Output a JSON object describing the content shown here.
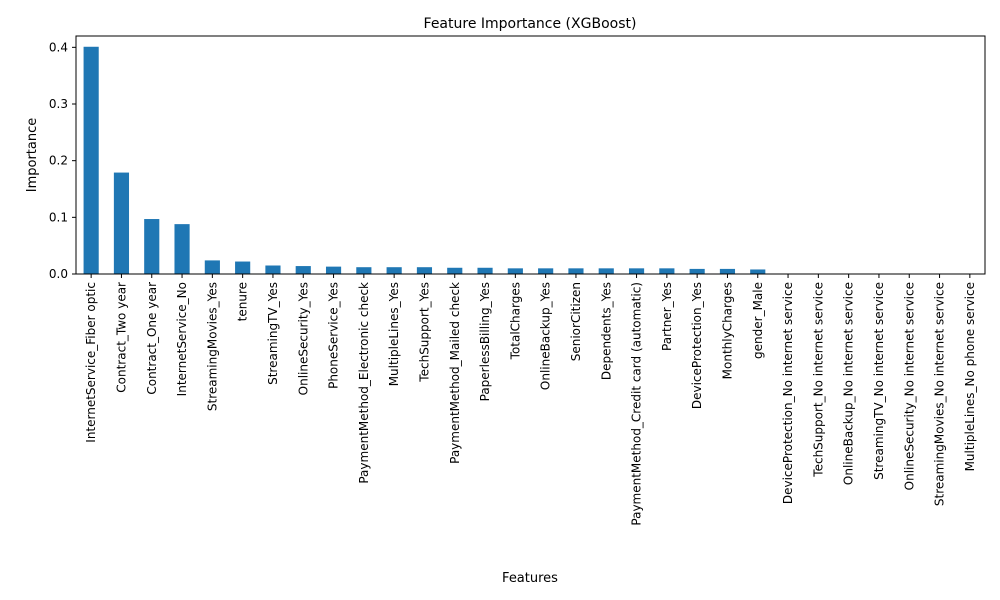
{
  "chart_data": {
    "type": "bar",
    "title": "Feature Importance (XGBoost)",
    "xlabel": "Features",
    "ylabel": "Importance",
    "ylim": [
      0,
      0.42
    ],
    "yticks": [
      0.0,
      0.1,
      0.2,
      0.3,
      0.4
    ],
    "ytick_labels": [
      "0.0",
      "0.1",
      "0.2",
      "0.3",
      "0.4"
    ],
    "grid": false,
    "bar_color": "#1f77b4",
    "categories": [
      "InternetService_Fiber optic",
      "Contract_Two year",
      "Contract_One year",
      "InternetService_No",
      "StreamingMovies_Yes",
      "tenure",
      "StreamingTV_Yes",
      "OnlineSecurity_Yes",
      "PhoneService_Yes",
      "PaymentMethod_Electronic check",
      "MultipleLines_Yes",
      "TechSupport_Yes",
      "PaymentMethod_Mailed check",
      "PaperlessBilling_Yes",
      "TotalCharges",
      "OnlineBackup_Yes",
      "SeniorCitizen",
      "Dependents_Yes",
      "PaymentMethod_Credit card (automatic)",
      "Partner_Yes",
      "DeviceProtection_Yes",
      "MonthlyCharges",
      "gender_Male",
      "DeviceProtection_No internet service",
      "TechSupport_No internet service",
      "OnlineBackup_No internet service",
      "StreamingTV_No internet service",
      "OnlineSecurity_No internet service",
      "StreamingMovies_No internet service",
      "MultipleLines_No phone service"
    ],
    "values": [
      0.401,
      0.179,
      0.097,
      0.088,
      0.024,
      0.022,
      0.015,
      0.014,
      0.013,
      0.012,
      0.012,
      0.012,
      0.011,
      0.011,
      0.01,
      0.01,
      0.01,
      0.01,
      0.01,
      0.01,
      0.009,
      0.009,
      0.008,
      0,
      0,
      0,
      0,
      0,
      0,
      0
    ]
  }
}
